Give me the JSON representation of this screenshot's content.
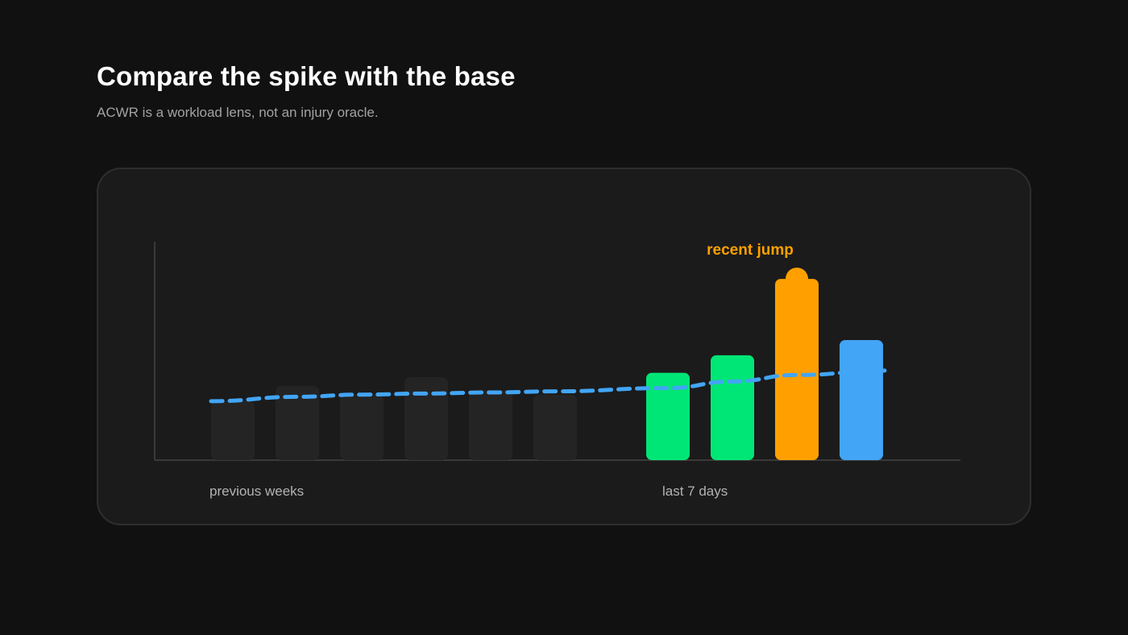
{
  "header": {
    "title": "Compare the spike with the base",
    "subtitle": "ACWR is a workload lens, not an injury oracle."
  },
  "chart_data": {
    "type": "bar",
    "groups": [
      {
        "label": "previous weeks",
        "bar_count": 6
      },
      {
        "label": "last 7 days",
        "bar_count": 4
      }
    ],
    "series": [
      {
        "values": [
          27,
          34,
          30,
          38,
          32,
          30,
          40,
          48,
          83,
          55
        ]
      }
    ],
    "bar_colors": [
      "#242424",
      "#242424",
      "#242424",
      "#242424",
      "#242424",
      "#242424",
      "#00e676",
      "#00e676",
      "#ffa000",
      "#42a5f5"
    ],
    "trend_line": {
      "style": "dashed",
      "color": "#42a5f5",
      "values": [
        27,
        29,
        30,
        30.5,
        31,
        31.5,
        33,
        36,
        39,
        41
      ]
    },
    "annotations": [
      {
        "text": "recent jump",
        "bar_index": 8,
        "color": "#ffa000"
      }
    ],
    "ylim": [
      0,
      100
    ],
    "grid": false,
    "legend": "none",
    "xlabel": "",
    "ylabel": ""
  }
}
